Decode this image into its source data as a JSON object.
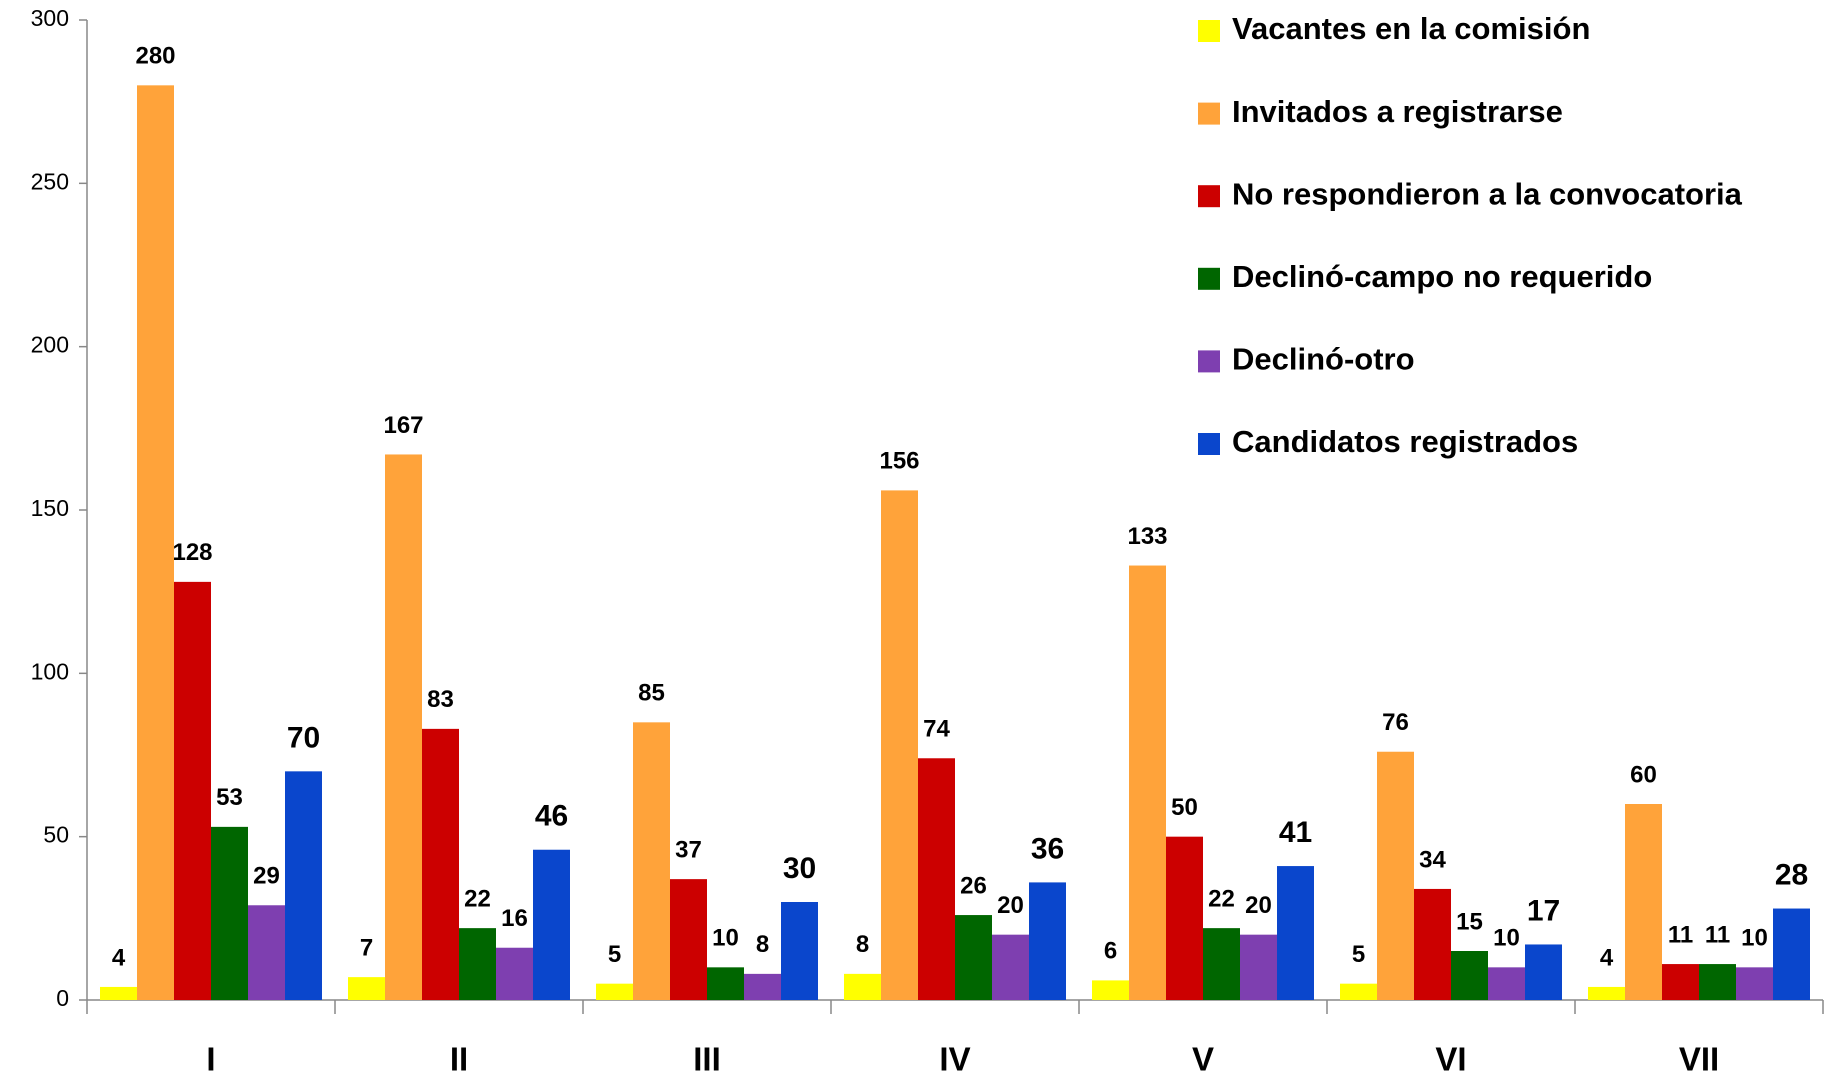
{
  "chart_data": {
    "type": "bar",
    "categories": [
      "I",
      "II",
      "III",
      "IV",
      "V",
      "VI",
      "VII"
    ],
    "series": [
      {
        "name": "Vacantes en la comisión",
        "color": "#ffff00",
        "values": [
          4,
          7,
          5,
          8,
          6,
          5,
          4
        ]
      },
      {
        "name": "Invitados a registrarse",
        "color": "#ffa33a",
        "values": [
          280,
          167,
          85,
          156,
          133,
          76,
          60
        ]
      },
      {
        "name": "No respondieron a la convocatoria",
        "color": "#cc0000",
        "values": [
          128,
          83,
          37,
          74,
          50,
          34,
          11
        ]
      },
      {
        "name": "Declinó-campo no requerido",
        "color": "#006600",
        "values": [
          53,
          22,
          10,
          26,
          22,
          15,
          11
        ]
      },
      {
        "name": "Declinó-otro",
        "color": "#7e3fb0",
        "values": [
          29,
          16,
          8,
          20,
          20,
          10,
          10
        ]
      },
      {
        "name": "Candidatos registrados",
        "color": "#0a46cc",
        "values": [
          70,
          46,
          30,
          36,
          41,
          17,
          28
        ]
      }
    ],
    "ylim": [
      0,
      300
    ],
    "yticks": [
      0,
      50,
      100,
      150,
      200,
      250,
      300
    ],
    "legend": "upper right"
  }
}
